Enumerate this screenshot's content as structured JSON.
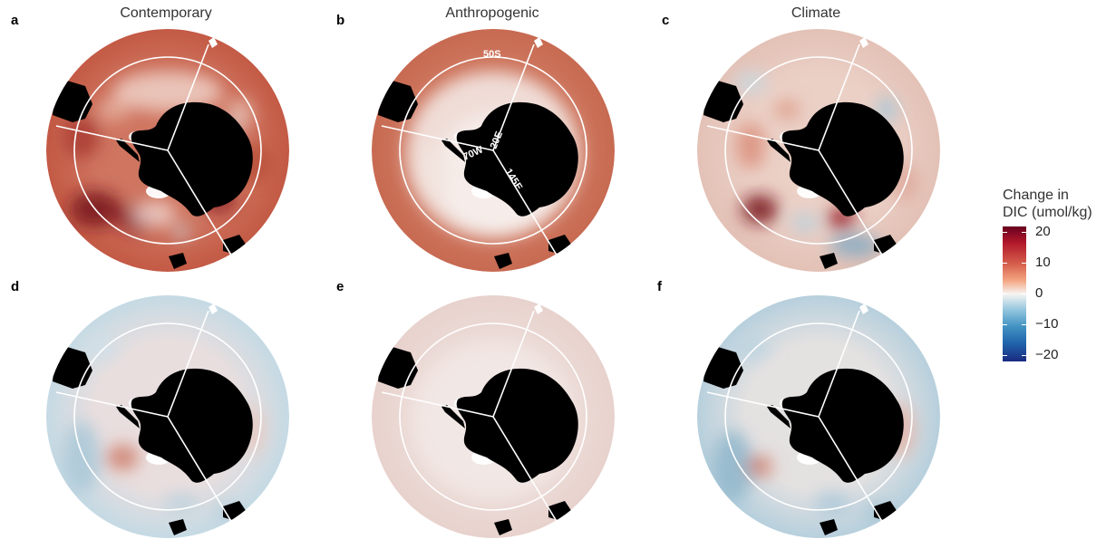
{
  "columns": [
    {
      "title": "Contemporary"
    },
    {
      "title": "Anthropogenic"
    },
    {
      "title": "Climate"
    }
  ],
  "panels": [
    {
      "letter": "a",
      "scheme": "contemporary-top"
    },
    {
      "letter": "b",
      "scheme": "anthropogenic-top"
    },
    {
      "letter": "c",
      "scheme": "climate-top"
    },
    {
      "letter": "d",
      "scheme": "contemporary-bottom"
    },
    {
      "letter": "e",
      "scheme": "anthropogenic-bottom"
    },
    {
      "letter": "f",
      "scheme": "climate-bottom"
    }
  ],
  "map_labels": {
    "latitude": "50S",
    "lon1": "70W",
    "lon2": "20E",
    "lon3": "145E"
  },
  "legend": {
    "title_line1": "Change in",
    "title_line2": "DIC (umol/kg)",
    "ticks": [
      "20",
      "10",
      "0",
      "−10",
      "−20"
    ],
    "colors": {
      "max": "#67001f",
      "mid": "#f7f4f2",
      "min": "#1a2a80"
    }
  }
}
